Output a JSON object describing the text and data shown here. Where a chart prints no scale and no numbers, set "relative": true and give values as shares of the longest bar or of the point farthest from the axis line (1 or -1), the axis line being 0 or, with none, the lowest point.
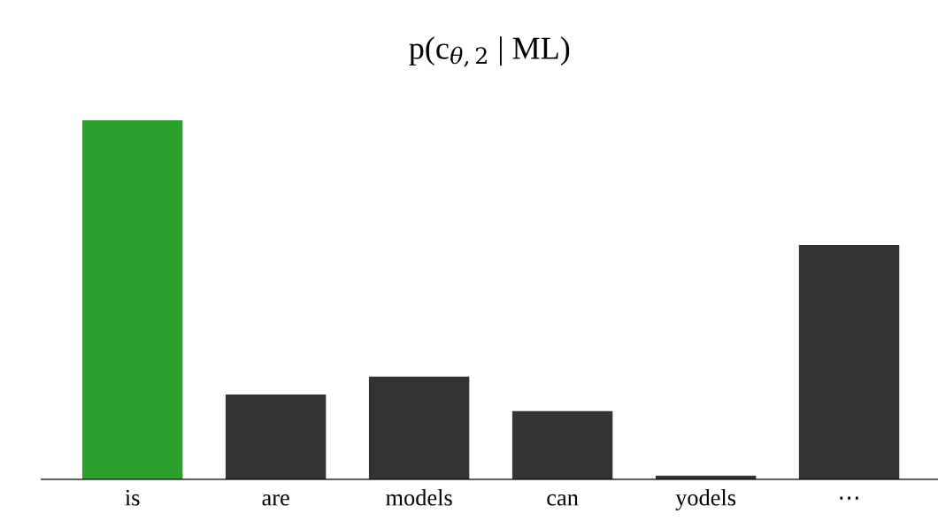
{
  "chart_data": {
    "type": "bar",
    "title": "p(c$_{θ,2}$ | ML)",
    "categories": [
      "is",
      "are",
      "models",
      "can",
      "yodels",
      "⋯"
    ],
    "values": [
      1,
      0.236,
      0.286,
      0.19,
      0.01,
      0.653
    ],
    "colors": [
      "#2ca02c",
      "#333333",
      "#333333",
      "#333333",
      "#333333",
      "#333333"
    ],
    "relative": true,
    "grid": false,
    "legend": false
  }
}
